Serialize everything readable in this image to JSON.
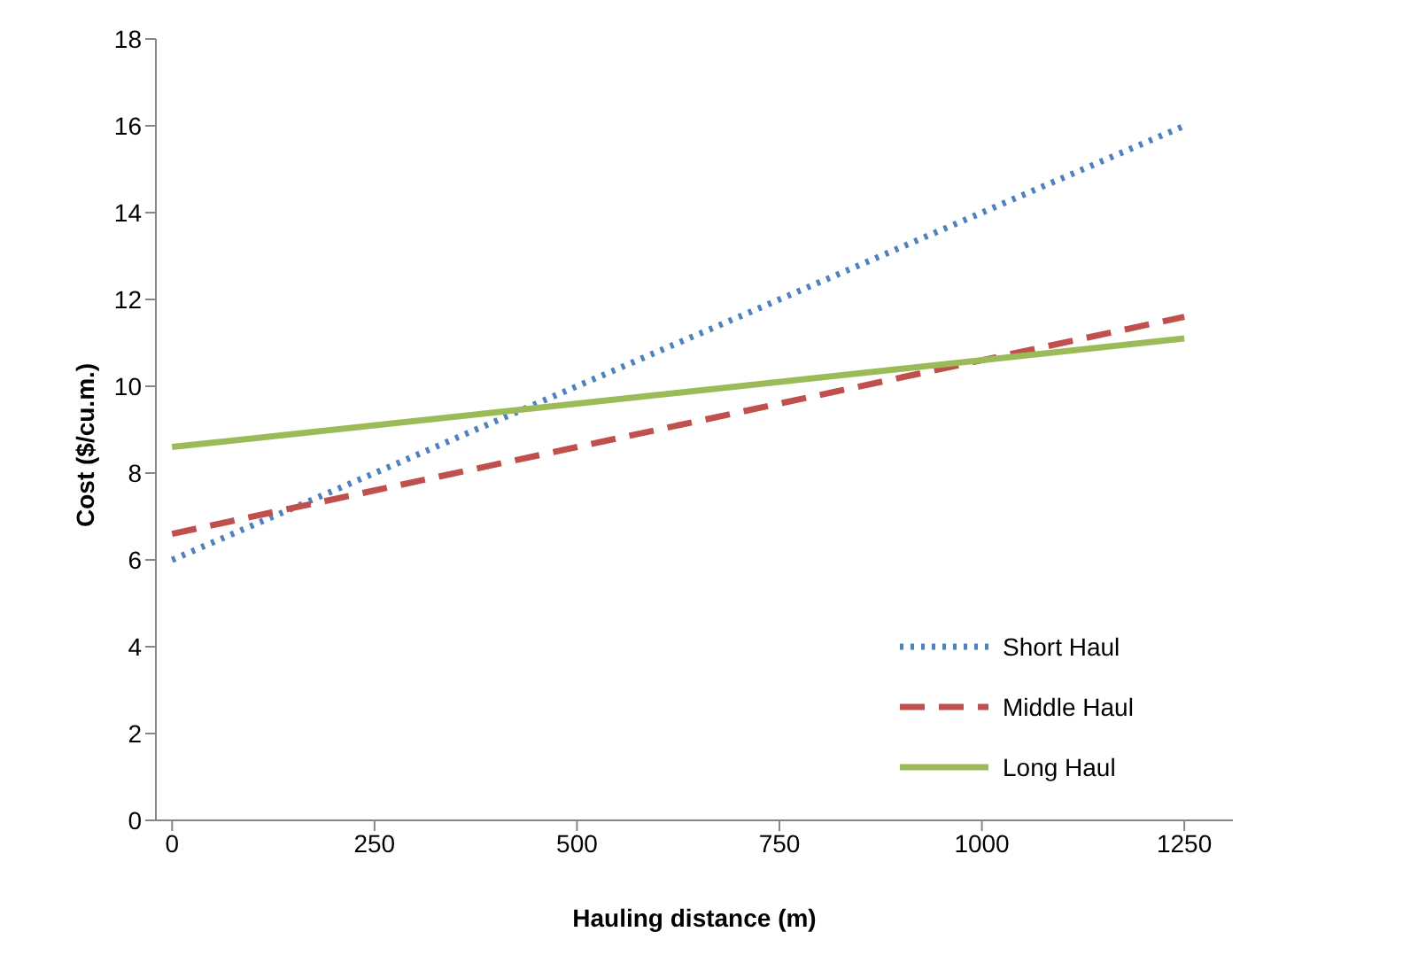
{
  "chart_data": {
    "type": "line",
    "xlabel": "Hauling distance (m)",
    "ylabel": "Cost ($/cu.m.)",
    "x": [
      0,
      1250
    ],
    "series": [
      {
        "name": "Short Haul",
        "color": "#4f81bd",
        "values": [
          6,
          16
        ],
        "line_style": "dotted"
      },
      {
        "name": "Middle Haul",
        "color": "#c0504d",
        "values": [
          6.6,
          11.6
        ],
        "line_style": "dashed"
      },
      {
        "name": "Long Haul",
        "color": "#9bbb59",
        "values": [
          8.6,
          11.1
        ],
        "line_style": "solid"
      }
    ],
    "xlim": [
      -20,
      1310
    ],
    "xticks": [
      0,
      250,
      500,
      750,
      1000,
      1250
    ],
    "ylim": [
      0,
      18
    ],
    "yticks": [
      0,
      2,
      4,
      6,
      8,
      10,
      12,
      14,
      16,
      18
    ],
    "grid": false,
    "legend": "bottom right",
    "marker": "none"
  }
}
